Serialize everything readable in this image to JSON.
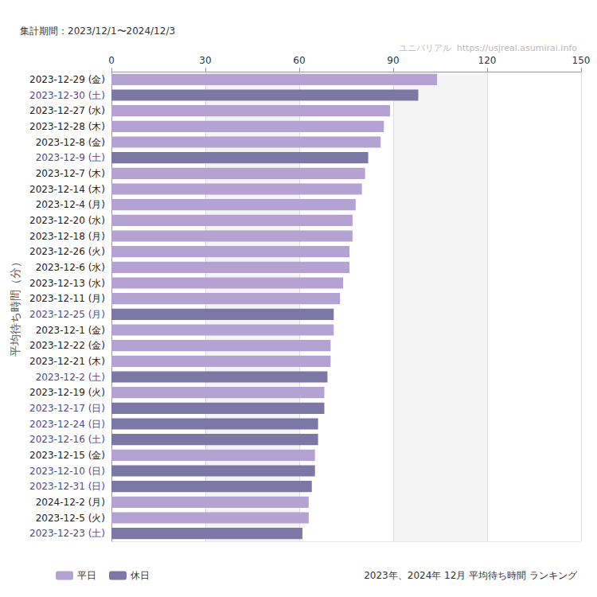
{
  "chart_data": {
    "type": "bar",
    "orientation": "horizontal",
    "title": "2023年、2024年 12月 平均待ち時間 ランキング",
    "subtitle": "集計期間：2023/12/1〜2024/12/3",
    "annotations": [
      "ユニバリアル  https://usjreal.asumirai.info"
    ],
    "ylabel": "平均待ち時間（分）",
    "categories": [
      "2023-12-29 (金)",
      "2023-12-30 (土)",
      "2023-12-27 (水)",
      "2023-12-28 (木)",
      "2023-12-8 (金)",
      "2023-12-9 (土)",
      "2023-12-7 (木)",
      "2023-12-14 (木)",
      "2023-12-4 (月)",
      "2023-12-20 (水)",
      "2023-12-18 (月)",
      "2023-12-26 (火)",
      "2023-12-6 (水)",
      "2023-12-13 (水)",
      "2023-12-11 (月)",
      "2023-12-25 (月)",
      "2023-12-1 (金)",
      "2023-12-22 (金)",
      "2023-12-21 (木)",
      "2023-12-2 (土)",
      "2023-12-19 (火)",
      "2023-12-17 (日)",
      "2023-12-24 (日)",
      "2023-12-16 (土)",
      "2023-12-15 (金)",
      "2023-12-10 (日)",
      "2023-12-31 (日)",
      "2024-12-2 (月)",
      "2023-12-5 (火)",
      "2023-12-23 (土)"
    ],
    "series": [
      {
        "name": "平日",
        "color": "#b3a2d2",
        "values": [
          104,
          null,
          89,
          87,
          86,
          null,
          81,
          80,
          78,
          77,
          77,
          76,
          76,
          74,
          73,
          null,
          71,
          70,
          70,
          null,
          68,
          null,
          null,
          null,
          65,
          null,
          null,
          63,
          63,
          null
        ]
      },
      {
        "name": "休日",
        "color": "#7d77a5",
        "values": [
          null,
          98,
          null,
          null,
          null,
          82,
          null,
          null,
          null,
          null,
          null,
          null,
          null,
          null,
          null,
          71,
          null,
          null,
          null,
          69,
          null,
          68,
          66,
          66,
          null,
          65,
          64,
          null,
          null,
          61
        ]
      }
    ],
    "xlim": [
      0,
      150
    ],
    "xticks": [
      0,
      30,
      60,
      90,
      120,
      150
    ],
    "grid": true,
    "legend": "bottom-left"
  }
}
